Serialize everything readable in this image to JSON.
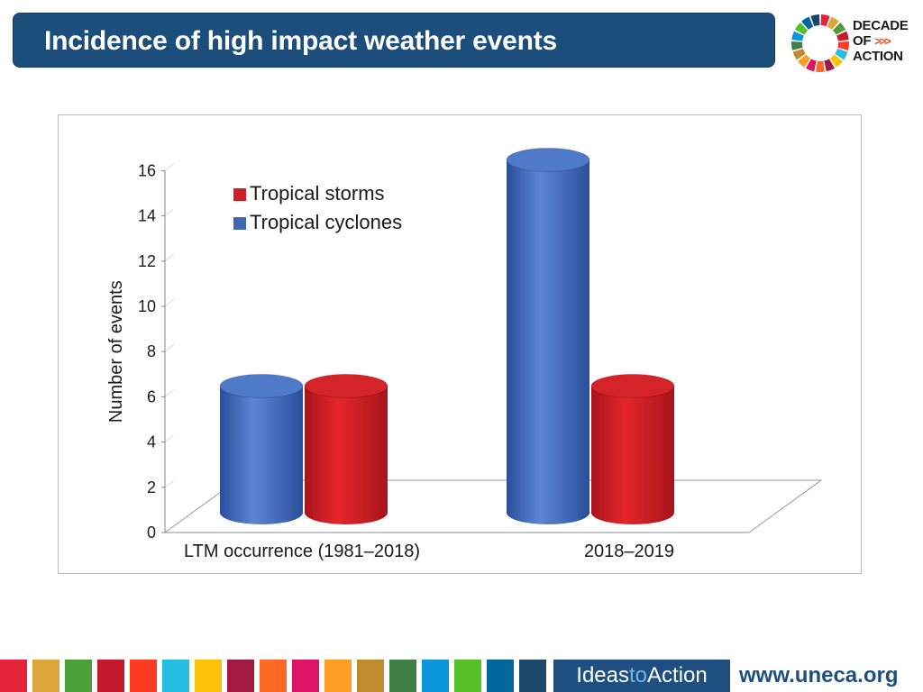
{
  "header": {
    "title": "Incidence of high impact weather events"
  },
  "logo": {
    "line1": "DECADE",
    "line2": "OF",
    "arrows": ">>>",
    "line3": "ACTION",
    "ring_colors": [
      "#e5243b",
      "#dda63a",
      "#4c9f38",
      "#c5192d",
      "#ff3a21",
      "#26bde2",
      "#fcc30b",
      "#a21942",
      "#fd6925",
      "#dd1367",
      "#fd9d24",
      "#bf8b2e",
      "#3f7e44",
      "#0a97d9",
      "#56c02b",
      "#00689d",
      "#19486a"
    ]
  },
  "chart_data": {
    "type": "bar",
    "categories": [
      "LTM occurrence (1981–2018)",
      "2018–2019"
    ],
    "series": [
      {
        "name": "Tropical cyclones",
        "color": "#3f67b4",
        "values": [
          6,
          16
        ]
      },
      {
        "name": "Tropical storms",
        "color": "#cf1f24",
        "values": [
          6,
          6
        ]
      }
    ],
    "title": "",
    "xlabel": "",
    "ylabel": "Number of events",
    "ylim": [
      0,
      16
    ],
    "yticks": [
      "0",
      "2",
      "4",
      "6",
      "8",
      "10",
      "12",
      "14",
      "16"
    ],
    "legend": [
      "Tropical storms",
      "Tropical cyclones"
    ],
    "legend_position": "top-left",
    "style": "3d-cylinder"
  },
  "footer": {
    "ideas_prefix": "Ideas",
    "ideas_to": "to",
    "ideas_suffix": "Action",
    "website": "www.uneca.org",
    "stripe_colors": [
      "#e5243b",
      "#dda63a",
      "#4c9f38",
      "#c5192d",
      "#ff3a21",
      "#26bde2",
      "#fcc30b",
      "#a21942",
      "#fd6925",
      "#dd1367",
      "#fd9d24",
      "#bf8b2e",
      "#3f7e44",
      "#0a97d9",
      "#56c02b",
      "#00689d",
      "#19486a"
    ]
  }
}
